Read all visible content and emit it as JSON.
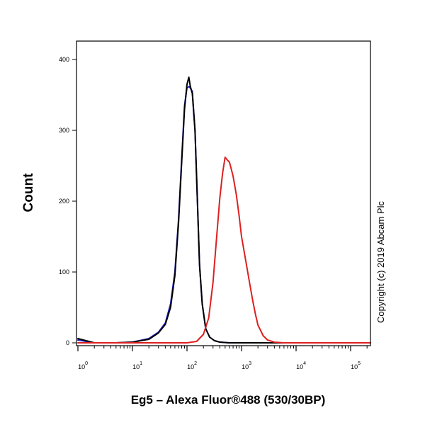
{
  "chart_data": {
    "type": "line",
    "xlabel": "Eg5 – Alexa Fluor®488 (530/30BP)",
    "ylabel": "Count",
    "annotation": "Copyright (c) 2019 Abcam Plc",
    "x_scale": "log",
    "xlim": [
      1,
      1000000
    ],
    "ylim": [
      0,
      410
    ],
    "x_ticks": [
      {
        "value": 1,
        "base": "10",
        "exponent": "0"
      },
      {
        "value": 10,
        "base": "10",
        "exponent": "1"
      },
      {
        "value": 100,
        "base": "10",
        "exponent": "2"
      },
      {
        "value": 1000,
        "base": "10",
        "exponent": "3"
      },
      {
        "value": 10000,
        "base": "10",
        "exponent": "4"
      },
      {
        "value": 100000,
        "base": "10",
        "exponent": "5"
      }
    ],
    "y_ticks": [
      {
        "value": 0,
        "label": "0"
      },
      {
        "value": 100,
        "label": "100"
      },
      {
        "value": 200,
        "label": "200"
      },
      {
        "value": 300,
        "label": "300"
      },
      {
        "value": 400,
        "label": "400"
      }
    ],
    "grid": false,
    "series": [
      {
        "color": "#1f1fd1",
        "x": [
          1,
          2,
          5,
          10,
          20,
          30,
          40,
          50,
          60,
          70,
          80,
          90,
          100,
          110,
          125,
          140,
          155,
          170,
          190,
          220,
          260,
          320,
          400,
          600,
          1000,
          2000,
          5000,
          20000,
          100000,
          600000
        ],
        "y": [
          4,
          0,
          0,
          1,
          6,
          15,
          28,
          55,
          100,
          175,
          260,
          335,
          360,
          362,
          355,
          300,
          200,
          110,
          55,
          20,
          8,
          3,
          1,
          0,
          0,
          0,
          0,
          0,
          0,
          0
        ]
      },
      {
        "color": "#000000",
        "x": [
          1,
          2,
          5,
          10,
          20,
          30,
          40,
          50,
          60,
          70,
          80,
          90,
          100,
          108,
          115,
          125,
          140,
          155,
          170,
          190,
          220,
          260,
          320,
          400,
          600,
          1000,
          2000,
          5000,
          20000,
          100000,
          600000
        ],
        "y": [
          6,
          0,
          0,
          1,
          5,
          14,
          26,
          50,
          95,
          170,
          255,
          330,
          365,
          375,
          362,
          352,
          300,
          200,
          110,
          55,
          20,
          8,
          3,
          1,
          0,
          0,
          0,
          0,
          0,
          0,
          0
        ]
      },
      {
        "color": "#dd2020",
        "x": [
          1,
          10,
          100,
          150,
          200,
          250,
          300,
          350,
          400,
          450,
          500,
          550,
          600,
          650,
          700,
          800,
          900,
          1000,
          1200,
          1400,
          1600,
          1800,
          2000,
          2500,
          3000,
          4000,
          6000,
          10000,
          100000,
          600000
        ],
        "y": [
          0,
          0,
          0,
          2,
          12,
          35,
          85,
          150,
          205,
          240,
          262,
          258,
          255,
          245,
          235,
          210,
          180,
          150,
          115,
          85,
          60,
          40,
          25,
          10,
          4,
          1,
          0,
          0,
          0,
          0
        ]
      }
    ]
  }
}
